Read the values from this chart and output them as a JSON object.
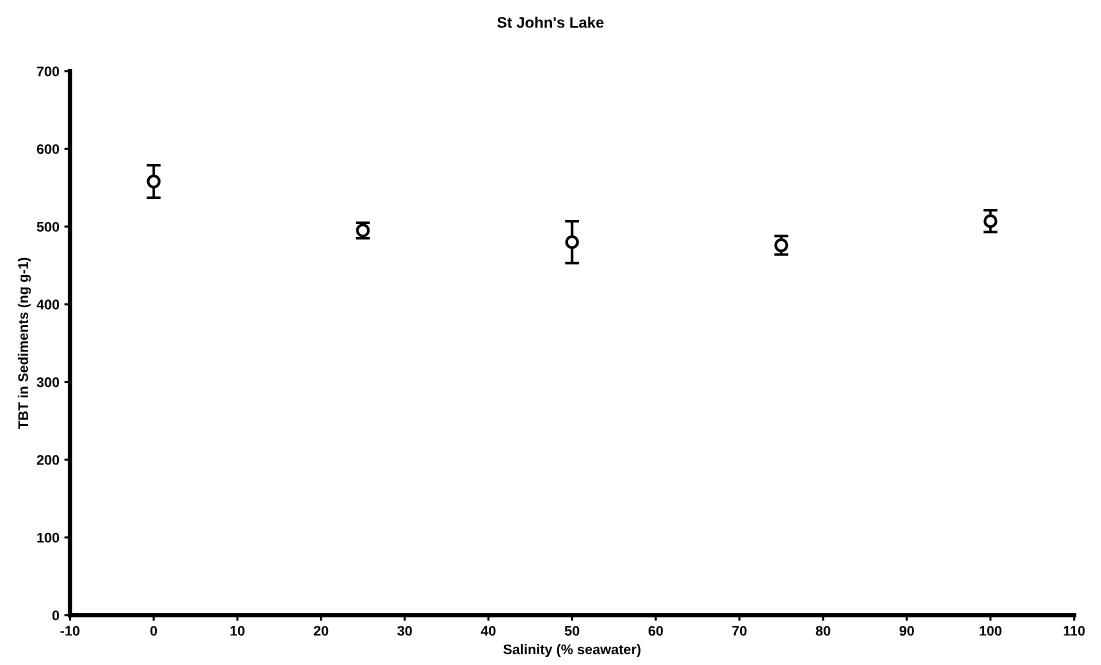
{
  "chart_data": {
    "type": "scatter",
    "title": "St John's Lake",
    "xlabel": "Salinity (% seawater)",
    "ylabel": "TBT in Sediments (ng g-1)",
    "x": [
      0,
      25,
      50,
      75,
      100
    ],
    "series": [
      {
        "color": "#000000",
        "values": [
          558,
          495,
          480,
          476,
          507
        ],
        "errors": [
          21,
          10,
          27,
          12,
          14
        ]
      }
    ],
    "xlim": [
      -10,
      110
    ],
    "xticks": [
      -10,
      0,
      10,
      20,
      30,
      40,
      50,
      60,
      70,
      80,
      90,
      100,
      110
    ],
    "ylim": [
      0,
      700
    ],
    "yticks": [
      0,
      100,
      200,
      300,
      400,
      500,
      600,
      700
    ],
    "grid": false,
    "legend": false,
    "marker": "circle",
    "line_style": "none"
  }
}
